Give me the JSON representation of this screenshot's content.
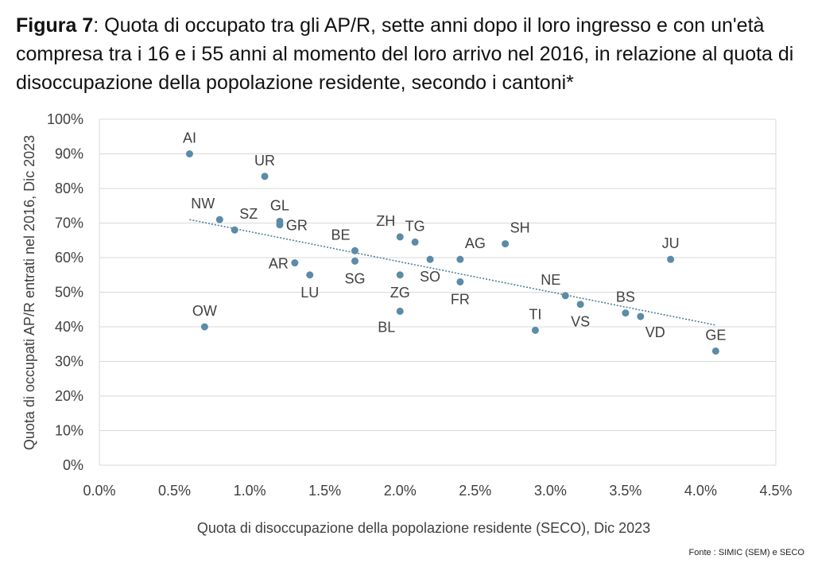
{
  "title": {
    "label": "Figura 7",
    "text": ": Quota di occupato tra gli AP/R, sette anni dopo il loro ingresso e con un'età compresa tra i 16 e i 55 anni al momento del loro arrivo nel 2016, in relazione al quota di disoccupazione della popolazione residente, secondo i cantoni*"
  },
  "source": "Fonte : SIMIC (SEM) e SECO",
  "colors": {
    "point": "#5b8ba7",
    "trend": "#4f7f95",
    "grid": "#d9d9d9",
    "text": "#404040"
  },
  "chart_data": {
    "type": "scatter",
    "xlabel": "Quota di disoccupazione della popolazione residente (SECO), Dic 2023",
    "ylabel": "Quota di occupati AP/R entrati nel 2016, Dic 2023",
    "xlim": [
      0,
      4.5
    ],
    "ylim": [
      0,
      100
    ],
    "x_ticks": [
      0,
      0.5,
      1.0,
      1.5,
      2.0,
      2.5,
      3.0,
      3.5,
      4.0,
      4.5
    ],
    "x_tick_labels": [
      "0.0%",
      "0.5%",
      "1.0%",
      "1.5%",
      "2.0%",
      "2.5%",
      "3.0%",
      "3.5%",
      "4.0%",
      "4.5%"
    ],
    "y_ticks": [
      0,
      10,
      20,
      30,
      40,
      50,
      60,
      70,
      80,
      90,
      100
    ],
    "y_tick_labels": [
      "0%",
      "10%",
      "20%",
      "30%",
      "40%",
      "50%",
      "60%",
      "70%",
      "80%",
      "90%",
      "100%"
    ],
    "grid": "horizontal",
    "trendline": {
      "type": "linear",
      "x": [
        0.6,
        4.1
      ],
      "y": [
        71,
        40.5
      ],
      "style": "dotted"
    },
    "points": [
      {
        "label": "AI",
        "x": 0.6,
        "y": 90,
        "label_pos": "above"
      },
      {
        "label": "OW",
        "x": 0.7,
        "y": 40,
        "label_pos": "above"
      },
      {
        "label": "NW",
        "x": 0.8,
        "y": 71,
        "label_pos": "above-left"
      },
      {
        "label": "SZ",
        "x": 0.9,
        "y": 68,
        "label_pos": "above-right"
      },
      {
        "label": "UR",
        "x": 1.1,
        "y": 83.5,
        "label_pos": "above"
      },
      {
        "label": "GL",
        "x": 1.2,
        "y": 70.5,
        "label_pos": "above"
      },
      {
        "label": "GR",
        "x": 1.2,
        "y": 69.5,
        "label_pos": "right"
      },
      {
        "label": "AR",
        "x": 1.3,
        "y": 58.5,
        "label_pos": "left"
      },
      {
        "label": "LU",
        "x": 1.4,
        "y": 55,
        "label_pos": "below"
      },
      {
        "label": "BE",
        "x": 1.7,
        "y": 62,
        "label_pos": "above-left"
      },
      {
        "label": "SG",
        "x": 1.7,
        "y": 59,
        "label_pos": "below"
      },
      {
        "label": "ZH",
        "x": 2.0,
        "y": 66,
        "label_pos": "above-left"
      },
      {
        "label": "ZG",
        "x": 2.0,
        "y": 55,
        "label_pos": "below"
      },
      {
        "label": "BL",
        "x": 2.0,
        "y": 44.5,
        "label_pos": "below-left"
      },
      {
        "label": "TG",
        "x": 2.1,
        "y": 64.5,
        "label_pos": "above"
      },
      {
        "label": "SO",
        "x": 2.2,
        "y": 59.5,
        "label_pos": "below"
      },
      {
        "label": "AG",
        "x": 2.4,
        "y": 59.5,
        "label_pos": "above-right"
      },
      {
        "label": "FR",
        "x": 2.4,
        "y": 53,
        "label_pos": "below"
      },
      {
        "label": "SH",
        "x": 2.7,
        "y": 64,
        "label_pos": "above-right"
      },
      {
        "label": "TI",
        "x": 2.9,
        "y": 39,
        "label_pos": "above"
      },
      {
        "label": "NE",
        "x": 3.1,
        "y": 49,
        "label_pos": "above-left"
      },
      {
        "label": "VS",
        "x": 3.2,
        "y": 46.5,
        "label_pos": "below"
      },
      {
        "label": "BS",
        "x": 3.5,
        "y": 44,
        "label_pos": "above"
      },
      {
        "label": "VD",
        "x": 3.6,
        "y": 43,
        "label_pos": "below-right"
      },
      {
        "label": "JU",
        "x": 3.8,
        "y": 59.5,
        "label_pos": "above"
      },
      {
        "label": "GE",
        "x": 4.1,
        "y": 33,
        "label_pos": "above"
      }
    ]
  }
}
